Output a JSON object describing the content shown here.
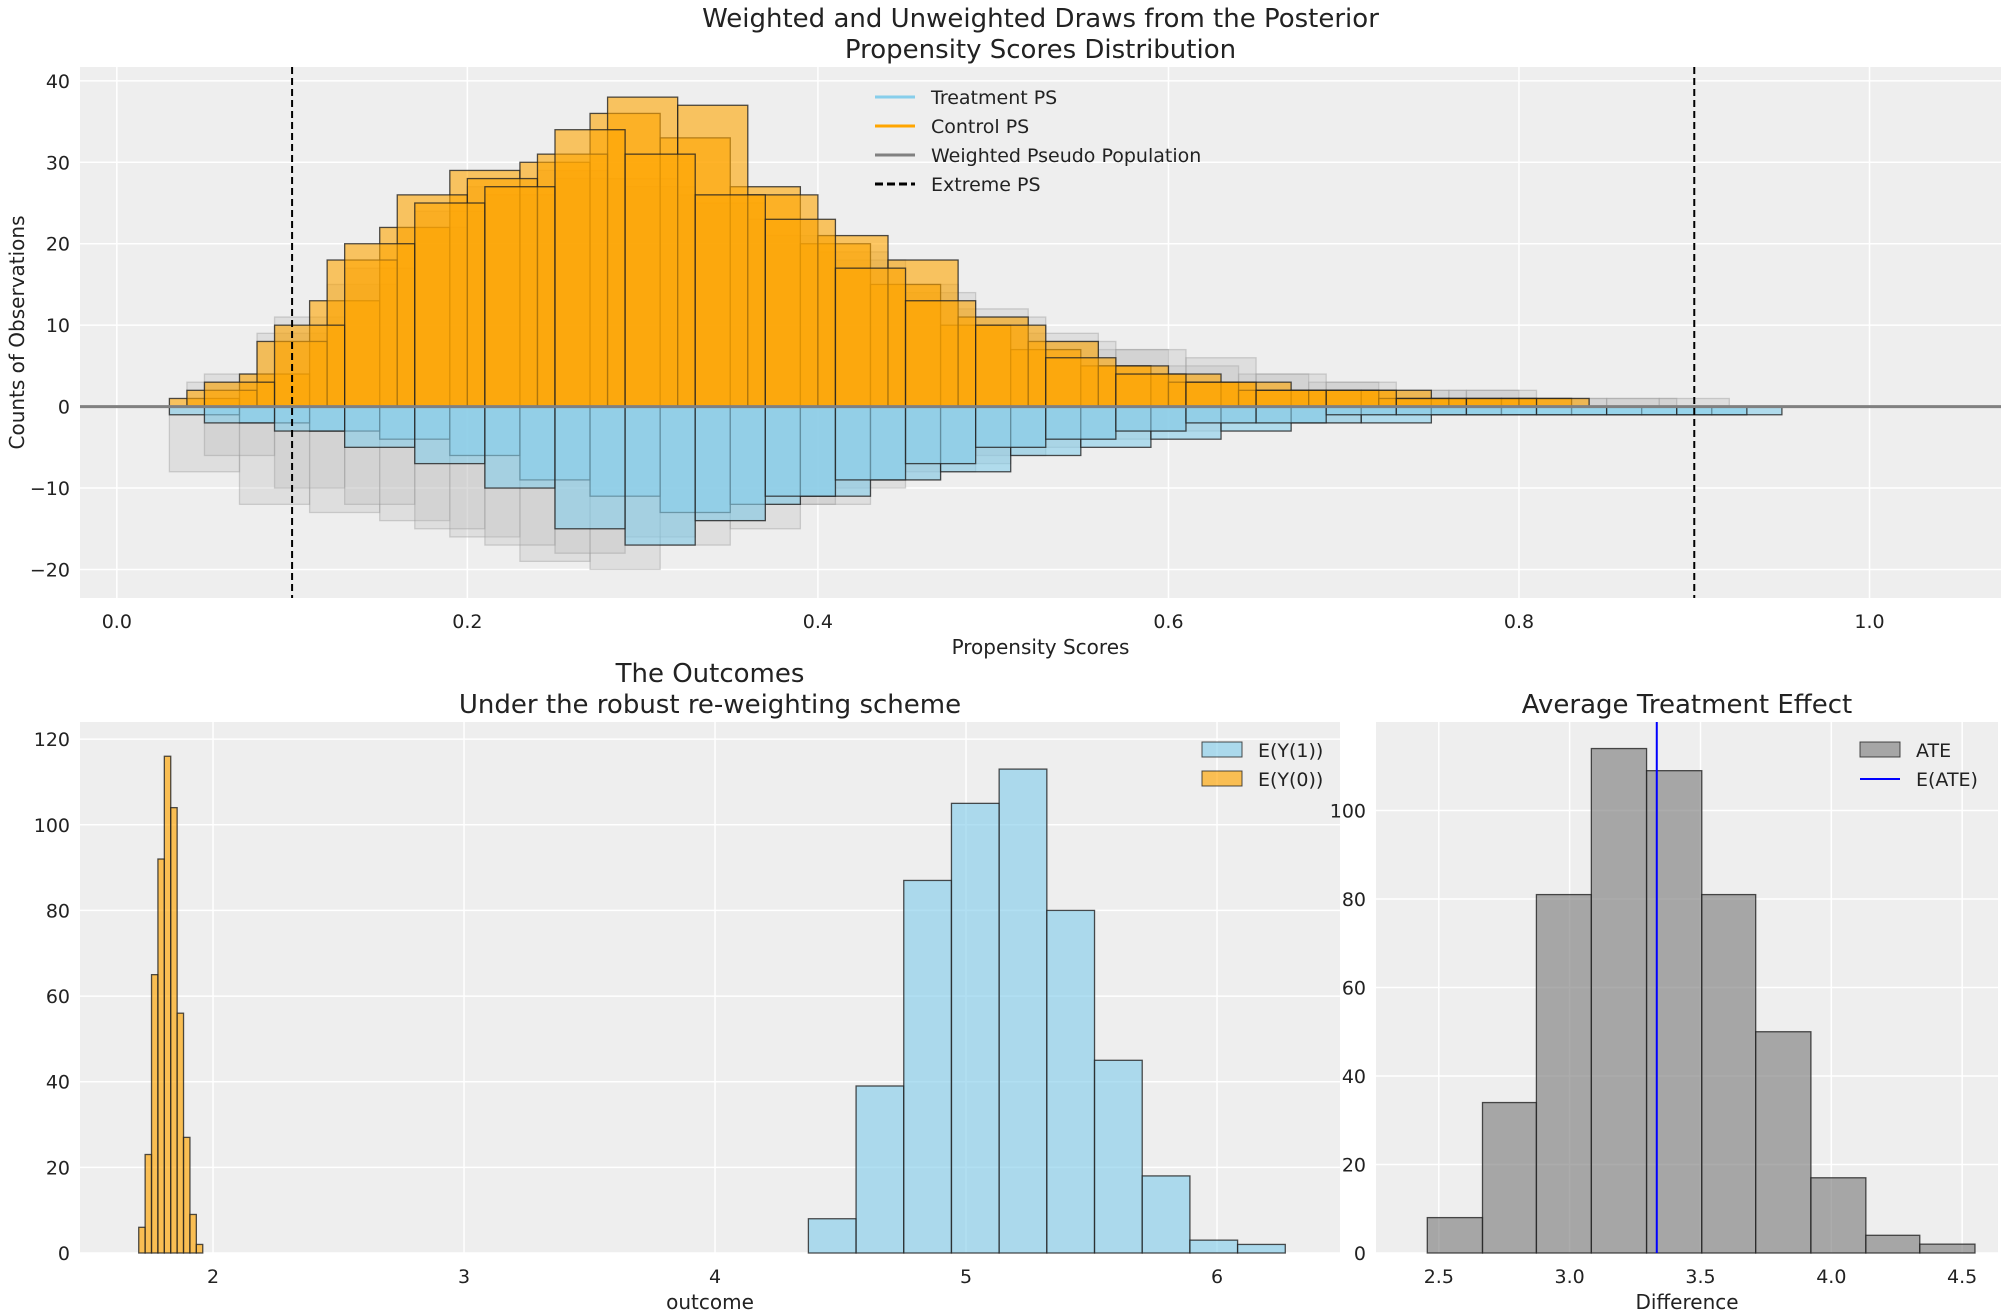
{
  "chart_data": [
    {
      "type": "bar",
      "title": "Weighted and Unweighted Draws from the Posterior",
      "subtitle": "Propensity Scores Distribution",
      "xlabel": "Propensity Scores",
      "ylabel": "Counts of Observations",
      "xlim": [
        -0.021,
        1.075
      ],
      "ylim": [
        -23.5,
        41.7
      ],
      "xticks": [
        0.0,
        0.2,
        0.4,
        0.6,
        0.8,
        1.0
      ],
      "xtick_labels": [
        "0.0",
        "0.2",
        "0.4",
        "0.6",
        "0.8",
        "1.0"
      ],
      "yticks": [
        -20,
        -10,
        0,
        10,
        20,
        30,
        40
      ],
      "ytick_labels": [
        "−20",
        "−10",
        "0",
        "10",
        "20",
        "30",
        "40"
      ],
      "grid": true,
      "legend_placement": "top-center",
      "legend": [
        {
          "label": "Treatment PS",
          "color": "#87ceeb",
          "style": "line"
        },
        {
          "label": "Control PS",
          "color": "#ffa500",
          "style": "line"
        },
        {
          "label": "Weighted Pseudo Population",
          "color": "#808080",
          "style": "line"
        },
        {
          "label": "Extreme PS",
          "color": "#000000",
          "style": "dashed"
        }
      ],
      "vlines": [
        0.1,
        0.9
      ],
      "hline": 0,
      "series": [
        {
          "group": "weighted",
          "color": "#bbbbbb",
          "bin_width": 0.04,
          "start": 0.04,
          "values": [
            3,
            9,
            15,
            22,
            27,
            29,
            28,
            26,
            23,
            19,
            15,
            12,
            9,
            7,
            5,
            4,
            3,
            2,
            2,
            1,
            1,
            1
          ]
        },
        {
          "group": "weighted",
          "color": "#bbbbbb",
          "bin_width": 0.04,
          "start": 0.05,
          "values": [
            4,
            11,
            17,
            24,
            26,
            28,
            27,
            25,
            21,
            18,
            14,
            11,
            8,
            7,
            6,
            4,
            3,
            2,
            2,
            1,
            1
          ]
        },
        {
          "group": "weighted",
          "color": "#bbbbbb",
          "bin_width": 0.04,
          "start": 0.03,
          "values": [
            -8,
            -12,
            -13,
            -14,
            -16,
            -19,
            -20,
            -17,
            -15,
            -12,
            -9,
            -7,
            -5,
            -4,
            -3,
            -2,
            -2,
            -1,
            -1
          ]
        },
        {
          "group": "weighted",
          "color": "#bbbbbb",
          "bin_width": 0.04,
          "start": 0.05,
          "values": [
            -6,
            -10,
            -12,
            -15,
            -17,
            -18,
            -16,
            -14,
            -12,
            -10,
            -8,
            -6,
            -4,
            -3,
            -2,
            -2,
            -1,
            -1
          ]
        },
        {
          "group": "control",
          "color": "#ffa500",
          "bin_width": 0.04,
          "start": 0.03,
          "values": [
            1,
            4,
            13,
            22,
            29,
            30,
            36,
            33,
            27,
            20,
            15,
            10,
            7,
            5,
            4,
            3,
            2,
            2,
            1,
            1
          ]
        },
        {
          "group": "control",
          "color": "#ffa500",
          "bin_width": 0.04,
          "start": 0.04,
          "values": [
            2,
            8,
            18,
            26,
            28,
            31,
            38,
            37,
            26,
            21,
            18,
            11,
            8,
            5,
            3,
            2,
            2,
            1,
            1,
            1
          ]
        },
        {
          "group": "control",
          "color": "#ffa500",
          "bin_width": 0.04,
          "start": 0.05,
          "values": [
            3,
            10,
            20,
            25,
            27,
            34,
            31,
            26,
            23,
            17,
            13,
            10,
            6,
            4,
            3,
            2,
            2,
            1,
            1
          ]
        },
        {
          "group": "treatment",
          "color": "#87ceeb",
          "bin_width": 0.04,
          "start": 0.03,
          "values": [
            -1,
            -2,
            -3,
            -4,
            -6,
            -9,
            -11,
            -13,
            -12,
            -11,
            -9,
            -8,
            -6,
            -5,
            -4,
            -3,
            -2,
            -2,
            -1,
            -1,
            -1,
            -1,
            -1
          ]
        },
        {
          "group": "treatment",
          "color": "#87ceeb",
          "bin_width": 0.04,
          "start": 0.05,
          "values": [
            -2,
            -3,
            -5,
            -7,
            -10,
            -15,
            -17,
            -14,
            -11,
            -9,
            -7,
            -5,
            -4,
            -3,
            -2,
            -2,
            -1,
            -1,
            -1,
            -1,
            -1,
            -1
          ]
        }
      ]
    },
    {
      "type": "bar",
      "title": "The Outcomes",
      "subtitle": "Under the robust re-weighting scheme",
      "xlabel": "outcome",
      "ylabel": "",
      "xlim": [
        1.47,
        6.49
      ],
      "ylim": [
        0,
        124
      ],
      "xticks": [
        2,
        3,
        4,
        5,
        6
      ],
      "xtick_labels": [
        "2",
        "3",
        "4",
        "5",
        "6"
      ],
      "yticks": [
        0,
        20,
        40,
        60,
        80,
        100,
        120
      ],
      "ytick_labels": [
        "0",
        "20",
        "40",
        "60",
        "80",
        "100",
        "120"
      ],
      "grid": true,
      "legend_placement": "top-right",
      "series": [
        {
          "name": "E(Y(1))",
          "color": "#87ceeb",
          "bin_edges": [
            4.372,
            4.562,
            4.752,
            4.942,
            5.132,
            5.322,
            5.512,
            5.702,
            5.892,
            6.082,
            6.272
          ],
          "values": [
            8,
            39,
            87,
            105,
            113,
            80,
            45,
            18,
            3,
            2
          ]
        },
        {
          "name": "E(Y(0))",
          "color": "#ffa500",
          "bin_edges": [
            1.704,
            1.7295,
            1.755,
            1.7805,
            1.806,
            1.8315,
            1.857,
            1.8825,
            1.908,
            1.9335,
            1.959
          ],
          "values": [
            6,
            23,
            65,
            92,
            116,
            104,
            56,
            27,
            9,
            2
          ]
        }
      ]
    },
    {
      "type": "bar",
      "title": "Average Treatment Effect",
      "xlabel": "Difference",
      "ylabel": "",
      "xlim": [
        2.26,
        4.637
      ],
      "ylim": [
        0,
        120
      ],
      "xticks": [
        2.5,
        3.0,
        3.5,
        4.0,
        4.5
      ],
      "xtick_labels": [
        "2.5",
        "3.0",
        "3.5",
        "4.0",
        "4.5"
      ],
      "yticks": [
        0,
        20,
        40,
        60,
        80,
        100
      ],
      "ytick_labels": [
        "0",
        "20",
        "40",
        "60",
        "80",
        "100"
      ],
      "grid": true,
      "legend_placement": "top-right",
      "series": [
        {
          "name": "ATE",
          "color": "#808080",
          "bin_edges": [
            2.456,
            2.667,
            2.873,
            3.083,
            3.294,
            3.505,
            3.711,
            3.922,
            4.132,
            4.338,
            4.549
          ],
          "values": [
            8,
            34,
            81,
            114,
            109,
            81,
            50,
            17,
            4,
            2
          ]
        }
      ],
      "vline": {
        "name": "E(ATE)",
        "value": 3.333,
        "color": "#0000ff"
      }
    }
  ]
}
